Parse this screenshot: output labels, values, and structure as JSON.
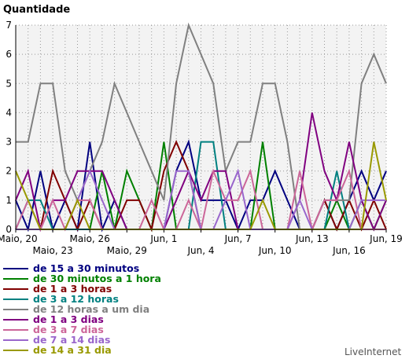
{
  "chart_data": {
    "type": "line",
    "title": "Quantidade",
    "brand": "LiveInternet",
    "ylim": [
      0,
      7
    ],
    "yticks": [
      0,
      1,
      2,
      3,
      4,
      5,
      6,
      7
    ],
    "grid": true,
    "legend_position": "bottom",
    "x": [
      "Maio, 20",
      "Maio, 21",
      "Maio, 22",
      "Maio, 23",
      "Maio, 24",
      "Maio, 25",
      "Maio, 26",
      "Maio, 27",
      "Maio, 28",
      "Maio, 29",
      "Maio, 30",
      "Maio, 31",
      "Jun, 1",
      "Jun, 2",
      "Jun, 3",
      "Jun, 4",
      "Jun, 5",
      "Jun, 6",
      "Jun, 7",
      "Jun, 8",
      "Jun, 9",
      "Jun, 10",
      "Jun, 11",
      "Jun, 12",
      "Jun, 13",
      "Jun, 14",
      "Jun, 15",
      "Jun, 16",
      "Jun, 17",
      "Jun, 18",
      "Jun, 19"
    ],
    "xticks": [
      {
        "label": "Maio, 20",
        "index": 0,
        "row": 0
      },
      {
        "label": "Maio, 23",
        "index": 3,
        "row": 1
      },
      {
        "label": "Maio, 26",
        "index": 6,
        "row": 0
      },
      {
        "label": "Maio, 29",
        "index": 9,
        "row": 1
      },
      {
        "label": "Jun, 1",
        "index": 12,
        "row": 0
      },
      {
        "label": "Jun, 4",
        "index": 15,
        "row": 1
      },
      {
        "label": "Jun, 7",
        "index": 18,
        "row": 0
      },
      {
        "label": "Jun, 10",
        "index": 21,
        "row": 1
      },
      {
        "label": "Jun, 13",
        "index": 24,
        "row": 0
      },
      {
        "label": "Jun, 16",
        "index": 27,
        "row": 1
      },
      {
        "label": "Jun, 19",
        "index": 30,
        "row": 0
      }
    ],
    "series": [
      {
        "name": "de 15  a 30 minutos",
        "color": "#000080",
        "values": [
          1,
          0,
          2,
          0,
          1,
          0,
          3,
          0,
          1,
          0,
          0,
          0,
          0,
          2,
          3,
          1,
          1,
          1,
          0,
          1,
          1,
          2,
          1,
          0,
          0,
          1,
          0,
          1,
          2,
          1,
          2
        ]
      },
      {
        "name": "de 30 minutos a 1 hora",
        "color": "#008000",
        "values": [
          0,
          0,
          0,
          0,
          0,
          0,
          0,
          2,
          0,
          2,
          1,
          0,
          3,
          0,
          0,
          0,
          0,
          0,
          0,
          0,
          3,
          0,
          0,
          0,
          0,
          0,
          1,
          0,
          1,
          0,
          1
        ]
      },
      {
        "name": "de 1 a 3 horas",
        "color": "#800000",
        "values": [
          0,
          0,
          0,
          2,
          1,
          0,
          1,
          0,
          0,
          1,
          1,
          0,
          2,
          3,
          2,
          0,
          0,
          0,
          0,
          0,
          0,
          0,
          0,
          0,
          0,
          1,
          0,
          1,
          0,
          1,
          0
        ]
      },
      {
        "name": "de 3 a 12 horas",
        "color": "#008080",
        "values": [
          0,
          1,
          1,
          0,
          0,
          0,
          0,
          0,
          0,
          0,
          0,
          0,
          0,
          0,
          0,
          3,
          3,
          0,
          0,
          0,
          0,
          0,
          0,
          0,
          0,
          0,
          2,
          0,
          0,
          0,
          0
        ]
      },
      {
        "name": "de 12 horas a um dia",
        "color": "#808080",
        "values": [
          3,
          3,
          5,
          5,
          2,
          1,
          2,
          3,
          5,
          4,
          3,
          2,
          1,
          5,
          7,
          6,
          5,
          2,
          3,
          3,
          5,
          5,
          3,
          0,
          0,
          1,
          1,
          1,
          5,
          6,
          5
        ]
      },
      {
        "name": "de 1 a 3 dias",
        "color": "#800080",
        "values": [
          1,
          2,
          0,
          1,
          1,
          2,
          2,
          2,
          1,
          0,
          0,
          0,
          0,
          1,
          2,
          1,
          2,
          2,
          0,
          0,
          0,
          0,
          0,
          1,
          4,
          2,
          1,
          3,
          1,
          0,
          1
        ]
      },
      {
        "name": "de 3 a 7 dias",
        "color": "#cc6699",
        "values": [
          0,
          1,
          0,
          1,
          0,
          1,
          1,
          0,
          0,
          0,
          0,
          1,
          0,
          0,
          1,
          0,
          2,
          1,
          1,
          2,
          0,
          0,
          0,
          2,
          0,
          1,
          1,
          2,
          0,
          0,
          0
        ]
      },
      {
        "name": "de 7 a 14 dias",
        "color": "#9966cc",
        "values": [
          0,
          0,
          0,
          0,
          0,
          1,
          2,
          1,
          0,
          0,
          0,
          0,
          0,
          2,
          2,
          0,
          0,
          1,
          2,
          0,
          0,
          0,
          0,
          1,
          0,
          0,
          0,
          0,
          1,
          1,
          1
        ]
      },
      {
        "name": "de 14 a 31 dia",
        "color": "#999900",
        "values": [
          2,
          1,
          0,
          0,
          0,
          1,
          0,
          0,
          0,
          0,
          0,
          0,
          0,
          0,
          0,
          0,
          0,
          0,
          0,
          0,
          1,
          0,
          0,
          0,
          0,
          0,
          0,
          0,
          0,
          3,
          1
        ]
      }
    ]
  }
}
